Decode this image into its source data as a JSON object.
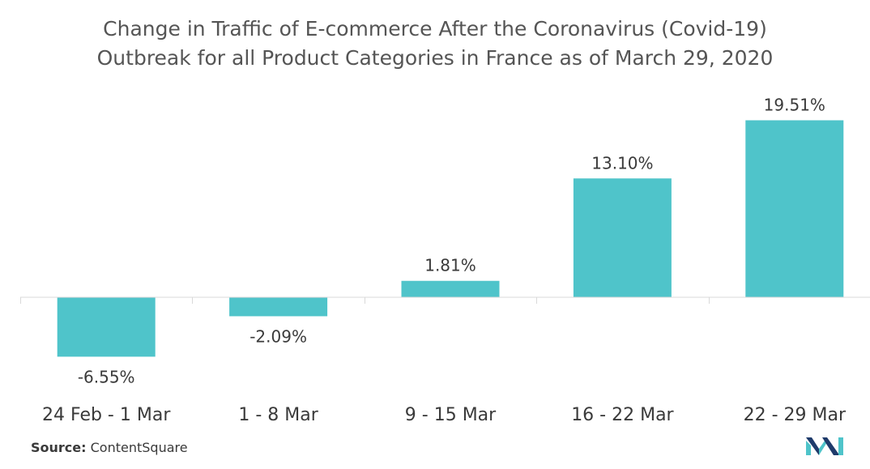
{
  "chart_data": {
    "type": "bar",
    "title_lines": [
      "Change in Traffic of E-commerce After the Coronavirus (Covid-19)",
      "Outbreak for all Product Categories in France as of March 29, 2020"
    ],
    "categories": [
      "24 Feb - 1 Mar",
      "1 - 8 Mar",
      "9 - 15 Mar",
      "16 - 22 Mar",
      "22 - 29 Mar"
    ],
    "values": [
      -6.55,
      -2.09,
      1.81,
      13.1,
      19.51
    ],
    "data_labels": [
      "-6.55%",
      "-2.09%",
      "1.81%",
      "13.10%",
      "19.51%"
    ],
    "unit": "%",
    "xlabel": "",
    "ylabel": "",
    "ylim": [
      -9,
      23
    ],
    "grid": false,
    "legend": "none",
    "bar_color": "#4fc4ca",
    "baseline_color": "#d9d9d9"
  },
  "footer": {
    "source_label": "Source:",
    "source_value": "ContentSquare"
  },
  "brand": {
    "logo_icon": "mordor-intelligence-logo-icon",
    "colors": [
      "#1f3b6b",
      "#4fc4ca"
    ]
  }
}
